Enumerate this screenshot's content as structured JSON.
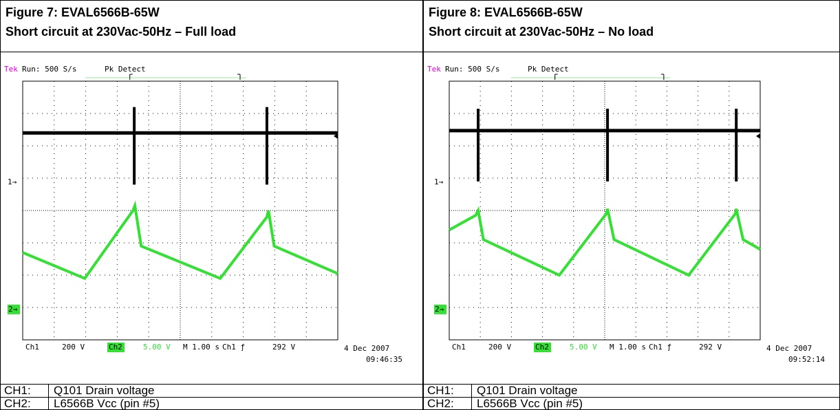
{
  "figures": [
    {
      "title": "Figure 7: EVAL6566B-65W",
      "subtitle": "Short circuit at 230Vac-50Hz – Full load",
      "scope": {
        "brand": "Tek",
        "status": "Run: 500 S/s",
        "mode": "Pk Detect",
        "ch1_marker": "1→",
        "ch2_marker": "2→",
        "readout": [
          "Ch1",
          "200 V",
          "Ch2",
          "5.00 V",
          "M 1.00 s",
          "Ch1 ƒ",
          "292 V"
        ],
        "date": "4 Dec 2007",
        "time": "09:46:35"
      },
      "channels": [
        {
          "label": "CH1:",
          "desc": "Q101 Drain voltage"
        },
        {
          "label": "CH2:",
          "desc": "L6566B Vcc (pin #5)"
        }
      ]
    },
    {
      "title": "Figure 8: EVAL6566B-65W",
      "subtitle": "Short circuit at 230Vac-50Hz – No load",
      "scope": {
        "brand": "Tek",
        "status": "Run: 500 S/s",
        "mode": "Pk Detect",
        "ch1_marker": "1→",
        "ch2_marker": "2→",
        "readout": [
          "Ch1",
          "200 V",
          "Ch2",
          "5.00 V",
          "M 1.00 s",
          "Ch1 ƒ",
          "292 V"
        ],
        "date": "4 Dec 2007",
        "time": "09:52:14"
      },
      "channels": [
        {
          "label": "CH1:",
          "desc": "Q101 Drain voltage"
        },
        {
          "label": "CH2:",
          "desc": "L6566B Vcc (pin #5)"
        }
      ]
    }
  ]
}
